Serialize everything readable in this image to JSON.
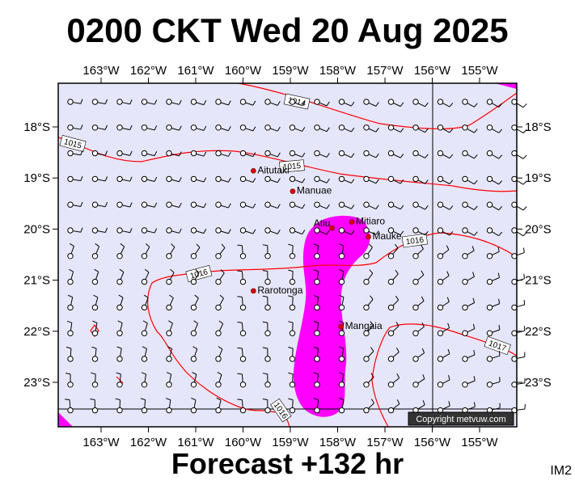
{
  "title": "0200 CKT Wed 20 Aug 2025",
  "footer": "Forecast +132 hr",
  "image_code": "IM2",
  "copyright": "Copyright metvuw.com",
  "colors": {
    "ocean": "#e6e6fa",
    "isobar": "#ff0000",
    "rain": "#ff00ff",
    "place_dot": "#dd0000",
    "frame": "#000000"
  },
  "lon_ticks": [
    "163°W",
    "162°W",
    "161°W",
    "160°W",
    "159°W",
    "158°W",
    "157°W",
    "156°W",
    "155°W"
  ],
  "lat_ticks": [
    "18°S",
    "19°S",
    "20°S",
    "21°S",
    "22°S",
    "23°S"
  ],
  "places": [
    {
      "name": "Aitutaki",
      "lon": -159.78,
      "lat": -18.86
    },
    {
      "name": "Manuae",
      "lon": -158.95,
      "lat": -19.26
    },
    {
      "name": "Atiu",
      "lon": -158.12,
      "lat": -19.98
    },
    {
      "name": "Mitiaro",
      "lon": -157.7,
      "lat": -19.86
    },
    {
      "name": "Mauke",
      "lon": -157.35,
      "lat": -20.15
    },
    {
      "name": "Rarotonga",
      "lon": -159.78,
      "lat": -21.21
    },
    {
      "name": "Mangaia",
      "lon": -157.93,
      "lat": -21.91
    }
  ],
  "isobars": [
    {
      "label": "1014"
    },
    {
      "label": "1015"
    },
    {
      "label": "1015"
    },
    {
      "label": "1016"
    },
    {
      "label": "1016"
    },
    {
      "label": "1016"
    },
    {
      "label": "1017"
    }
  ]
}
